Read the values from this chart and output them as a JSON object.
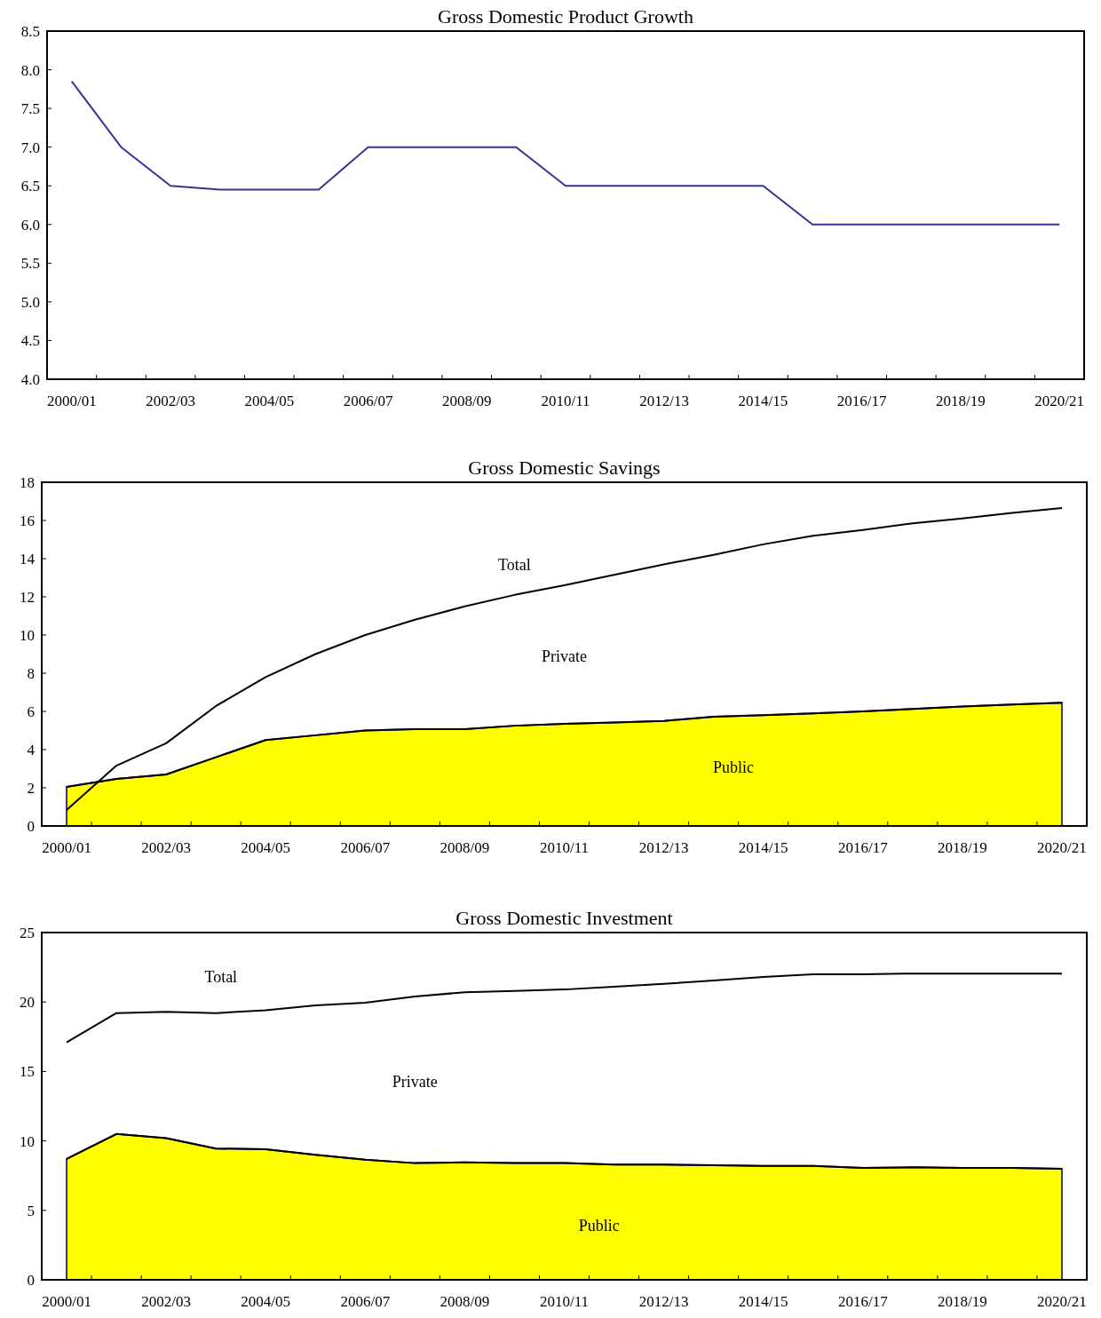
{
  "chart_data": [
    {
      "type": "line",
      "title": "Gross Domestic Product Growth",
      "categories": [
        "2000/01",
        null,
        "2002/03",
        null,
        "2004/05",
        null,
        "2006/07",
        null,
        "2008/09",
        null,
        "2010/11",
        null,
        "2012/13",
        null,
        "2014/15",
        null,
        "2016/17",
        null,
        "2018/19",
        null,
        "2020/21"
      ],
      "series": [
        {
          "color": "#333399",
          "values": [
            7.85,
            7.0,
            6.5,
            6.45,
            6.45,
            6.45,
            7.0,
            7.0,
            7.0,
            7.0,
            6.5,
            6.5,
            6.5,
            6.5,
            6.5,
            6.0,
            6.0,
            6.0,
            6.0,
            6.0,
            6.0
          ]
        }
      ],
      "ylim": [
        4,
        8.5
      ],
      "yticks": [
        {
          "value": 4,
          "label": "4.0"
        },
        {
          "value": 4.5,
          "label": "4.5"
        },
        {
          "value": 5,
          "label": "5.0"
        },
        {
          "value": 5.5,
          "label": "5.5"
        },
        {
          "value": 6,
          "label": "6.0"
        },
        {
          "value": 6.5,
          "label": "6.5"
        },
        {
          "value": 7,
          "label": "7.0"
        },
        {
          "value": 7.5,
          "label": "7.5"
        },
        {
          "value": 8,
          "label": "8.0"
        },
        {
          "value": 8.5,
          "label": "8.5"
        }
      ]
    },
    {
      "type": "area",
      "title": "Gross Domestic Savings",
      "categories": [
        "2000/01",
        null,
        "2002/03",
        null,
        "2004/05",
        null,
        "2006/07",
        null,
        "2008/09",
        null,
        "2010/11",
        null,
        "2012/13",
        null,
        "2014/15",
        null,
        "2016/17",
        null,
        "2018/19",
        null,
        "2020/21"
      ],
      "series": [
        {
          "name": "Public",
          "color": "#ffff00",
          "values": [
            2.05,
            2.47,
            2.7,
            3.6,
            4.5,
            4.75,
            5.0,
            5.07,
            5.07,
            5.25,
            5.35,
            5.42,
            5.5,
            5.72,
            5.8,
            5.9,
            6.0,
            6.13,
            6.26,
            6.36,
            6.45
          ]
        },
        {
          "name": "Total",
          "type": "line",
          "color": "#000000",
          "values": [
            0.84,
            3.16,
            4.33,
            6.28,
            7.8,
            9.0,
            10.0,
            10.8,
            11.5,
            12.1,
            12.6,
            13.15,
            13.7,
            14.2,
            14.75,
            15.2,
            15.5,
            15.85,
            16.1,
            16.4,
            16.65
          ]
        }
      ],
      "annotations": [
        "Private"
      ],
      "ylim": [
        0,
        18
      ],
      "yticks": [
        0,
        2,
        4,
        6,
        8,
        10,
        12,
        14,
        16,
        18
      ]
    },
    {
      "type": "area",
      "title": "Gross Domestic Investment",
      "categories": [
        "2000/01",
        null,
        "2002/03",
        null,
        "2004/05",
        null,
        "2006/07",
        null,
        "2008/09",
        null,
        "2010/11",
        null,
        "2012/13",
        null,
        "2014/15",
        null,
        "2016/17",
        null,
        "2018/19",
        null,
        "2020/21"
      ],
      "series": [
        {
          "name": "Public",
          "color": "#ffff00",
          "values": [
            8.7,
            10.5,
            10.2,
            9.45,
            9.4,
            9.0,
            8.65,
            8.4,
            8.45,
            8.4,
            8.4,
            8.3,
            8.3,
            8.25,
            8.2,
            8.2,
            8.05,
            8.1,
            8.05,
            8.05,
            8.0
          ]
        },
        {
          "name": "Total",
          "type": "line",
          "color": "#000000",
          "values": [
            17.1,
            19.2,
            19.3,
            19.2,
            19.4,
            19.75,
            19.95,
            20.4,
            20.7,
            20.8,
            20.9,
            21.1,
            21.3,
            21.55,
            21.8,
            22.0,
            22.0,
            22.05,
            22.05,
            22.05,
            22.05
          ]
        }
      ],
      "annotations": [
        "Private"
      ],
      "ylim": [
        0,
        25
      ],
      "yticks": [
        0,
        5,
        10,
        15,
        20,
        25
      ]
    }
  ]
}
